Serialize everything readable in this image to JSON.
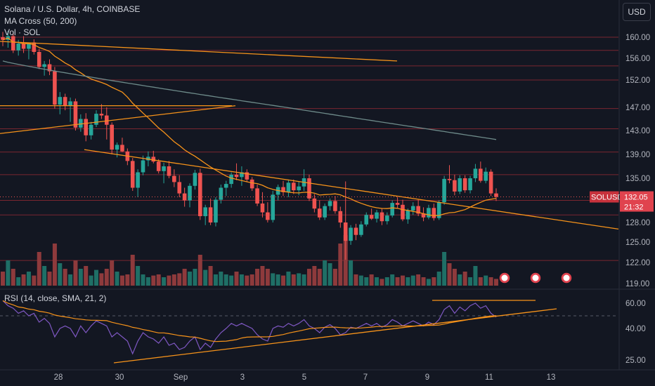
{
  "header": {
    "title": "Solana / U.S. Dollar, 4h, COINBASE",
    "indicator_ma": "MA Cross (50, 200)",
    "indicator_vol": "Vol · SOL",
    "currency_button": "USD"
  },
  "price_scale": {
    "ticks": [
      "160.00",
      "156.00",
      "152.00",
      "147.00",
      "143.00",
      "139.00",
      "135.00",
      "128.00",
      "125.00",
      "122.00",
      "119.00"
    ],
    "current_symbol": "SOLUSD",
    "current_price": "132.05",
    "countdown": "21:32"
  },
  "rsi": {
    "label": "RSI (14, close, SMA, 21, 2)",
    "ticks": [
      "60.00",
      "40.00",
      "25.00"
    ]
  },
  "time_axis": {
    "labels": [
      "28",
      "30",
      "Sep",
      "3",
      "5",
      "7",
      "9",
      "11",
      "13"
    ]
  },
  "colors": {
    "background": "#131722",
    "up": "#26a69a",
    "down": "#ef5350",
    "trendline": "#f7931a",
    "ma_long": "#6e8b8a",
    "rsi_line": "#7e57c2",
    "rsi_ma": "#f7931a"
  },
  "chart_data": {
    "type": "candlestick",
    "symbol": "SOLUSD",
    "interval": "4h",
    "candles": [
      [
        160.0,
        161.0,
        158.3,
        159.5
      ],
      [
        159.5,
        161.2,
        158.0,
        160.2
      ],
      [
        160.2,
        160.8,
        157.0,
        157.5
      ],
      [
        157.5,
        159.5,
        156.5,
        158.8
      ],
      [
        158.8,
        160.2,
        157.0,
        157.8
      ],
      [
        157.8,
        159.0,
        155.8,
        159.0
      ],
      [
        159.0,
        159.6,
        156.7,
        157.2
      ],
      [
        157.2,
        157.8,
        154.0,
        154.4
      ],
      [
        154.4,
        155.5,
        152.8,
        154.9
      ],
      [
        154.9,
        155.8,
        152.9,
        153.6
      ],
      [
        153.6,
        154.4,
        146.8,
        147.5
      ],
      [
        147.5,
        149.8,
        145.8,
        148.9
      ],
      [
        148.9,
        149.5,
        146.5,
        147.3
      ],
      [
        147.3,
        148.8,
        144.5,
        148.1
      ],
      [
        148.1,
        148.6,
        143.0,
        143.5
      ],
      [
        143.5,
        145.8,
        142.8,
        145.0
      ],
      [
        145.0,
        146.0,
        141.2,
        142.2
      ],
      [
        142.2,
        144.5,
        141.5,
        144.0
      ],
      [
        144.0,
        146.5,
        143.6,
        145.9
      ],
      [
        145.9,
        147.6,
        145.0,
        145.6
      ],
      [
        145.6,
        147.0,
        141.5,
        144.0
      ],
      [
        144.0,
        144.4,
        139.0,
        139.8
      ],
      [
        139.8,
        141.0,
        138.5,
        140.6
      ],
      [
        140.6,
        141.8,
        139.4,
        139.5
      ],
      [
        139.5,
        140.0,
        137.2,
        137.9
      ],
      [
        137.9,
        138.4,
        133.0,
        133.5
      ],
      [
        133.5,
        136.5,
        132.0,
        136.0
      ],
      [
        136.0,
        138.8,
        135.5,
        138.0
      ],
      [
        138.0,
        139.5,
        137.0,
        138.6
      ],
      [
        138.6,
        139.6,
        137.5,
        137.8
      ],
      [
        137.8,
        138.2,
        135.8,
        136.2
      ],
      [
        136.2,
        137.6,
        134.2,
        137.0
      ],
      [
        137.0,
        137.9,
        135.0,
        135.4
      ],
      [
        135.4,
        136.5,
        133.6,
        134.4
      ],
      [
        134.4,
        135.5,
        132.0,
        132.6
      ],
      [
        132.6,
        133.5,
        130.5,
        131.5
      ],
      [
        131.5,
        134.2,
        130.4,
        133.8
      ],
      [
        133.8,
        136.4,
        133.2,
        135.9
      ],
      [
        135.9,
        136.6,
        128.4,
        129.0
      ],
      [
        129.0,
        130.8,
        127.6,
        130.4
      ],
      [
        130.4,
        131.8,
        127.6,
        128.0
      ],
      [
        128.0,
        132.0,
        127.4,
        131.6
      ],
      [
        131.6,
        134.0,
        131.0,
        133.5
      ],
      [
        133.5,
        134.6,
        132.2,
        134.1
      ],
      [
        134.1,
        136.0,
        133.5,
        135.6
      ],
      [
        135.6,
        137.5,
        134.7,
        135.2
      ],
      [
        135.2,
        137.0,
        133.8,
        136.0
      ],
      [
        136.0,
        136.5,
        134.5,
        134.8
      ],
      [
        134.8,
        135.2,
        133.0,
        133.4
      ],
      [
        133.4,
        134.0,
        130.6,
        131.0
      ],
      [
        131.0,
        132.8,
        128.8,
        129.6
      ],
      [
        129.6,
        131.2,
        128.0,
        128.4
      ],
      [
        128.4,
        133.0,
        128.0,
        132.4
      ],
      [
        132.4,
        134.0,
        131.5,
        133.6
      ],
      [
        133.6,
        134.6,
        132.2,
        132.8
      ],
      [
        132.8,
        134.8,
        132.0,
        134.3
      ],
      [
        134.3,
        134.8,
        132.5,
        133.1
      ],
      [
        133.1,
        134.5,
        132.3,
        133.7
      ],
      [
        133.7,
        136.5,
        133.0,
        135.0
      ],
      [
        135.0,
        135.6,
        131.4,
        131.8
      ],
      [
        131.8,
        132.5,
        129.6,
        130.2
      ],
      [
        130.2,
        131.5,
        128.4,
        128.8
      ],
      [
        128.8,
        131.0,
        128.4,
        130.6
      ],
      [
        130.6,
        131.8,
        129.9,
        131.4
      ],
      [
        131.4,
        132.2,
        129.4,
        129.8
      ],
      [
        129.8,
        130.5,
        127.2,
        128.0
      ],
      [
        128.0,
        134.5,
        122.4,
        125.2
      ],
      [
        125.2,
        127.6,
        124.6,
        127.2
      ],
      [
        127.2,
        127.8,
        125.3,
        126.1
      ],
      [
        126.1,
        128.2,
        125.8,
        127.7
      ],
      [
        127.7,
        129.6,
        127.4,
        129.2
      ],
      [
        129.2,
        130.2,
        128.4,
        128.6
      ],
      [
        128.6,
        130.0,
        128.0,
        129.6
      ],
      [
        129.6,
        130.2,
        127.6,
        128.2
      ],
      [
        128.2,
        129.6,
        127.7,
        129.1
      ],
      [
        129.1,
        131.5,
        128.8,
        131.1
      ],
      [
        131.1,
        132.0,
        130.2,
        130.8
      ],
      [
        130.8,
        131.6,
        128.2,
        128.5
      ],
      [
        128.5,
        130.2,
        127.8,
        129.9
      ],
      [
        129.9,
        131.2,
        129.2,
        130.6
      ],
      [
        130.6,
        131.6,
        129.0,
        129.4
      ],
      [
        129.4,
        130.4,
        128.2,
        128.8
      ],
      [
        128.8,
        130.8,
        128.5,
        130.3
      ],
      [
        130.3,
        131.0,
        128.3,
        128.7
      ],
      [
        128.7,
        131.5,
        128.4,
        131.2
      ],
      [
        131.2,
        135.4,
        130.8,
        134.9
      ],
      [
        134.9,
        137.2,
        134.2,
        134.7
      ],
      [
        134.7,
        135.6,
        132.3,
        132.9
      ],
      [
        132.9,
        135.5,
        132.5,
        135.0
      ],
      [
        135.0,
        135.5,
        132.7,
        133.1
      ],
      [
        133.1,
        135.4,
        132.6,
        135.0
      ],
      [
        135.0,
        137.4,
        134.4,
        136.6
      ],
      [
        136.6,
        137.8,
        134.3,
        134.6
      ],
      [
        134.6,
        136.8,
        134.2,
        136.1
      ],
      [
        136.1,
        136.5,
        132.2,
        132.6
      ],
      [
        132.6,
        133.4,
        131.4,
        132.05
      ]
    ],
    "volume_relative": [
      0.25,
      0.45,
      0.3,
      0.15,
      0.2,
      0.25,
      0.18,
      0.6,
      0.35,
      0.25,
      0.75,
      0.4,
      0.3,
      0.2,
      0.45,
      0.3,
      0.35,
      0.18,
      0.28,
      0.22,
      0.3,
      0.45,
      0.25,
      0.18,
      0.2,
      0.55,
      0.35,
      0.2,
      0.15,
      0.18,
      0.2,
      0.15,
      0.18,
      0.2,
      0.22,
      0.3,
      0.25,
      0.3,
      0.55,
      0.28,
      0.35,
      0.2,
      0.25,
      0.2,
      0.18,
      0.25,
      0.2,
      0.18,
      0.2,
      0.3,
      0.35,
      0.3,
      0.22,
      0.2,
      0.18,
      0.25,
      0.2,
      0.22,
      0.2,
      0.3,
      0.35,
      0.3,
      0.45,
      0.4,
      0.3,
      0.75,
      0.9,
      0.45,
      0.2,
      0.18,
      0.15,
      0.2,
      0.15,
      0.12,
      0.15,
      0.2,
      0.15,
      0.18,
      0.15,
      0.18,
      0.2,
      0.15,
      0.12,
      0.15,
      0.25,
      0.6,
      0.4,
      0.3,
      0.2,
      0.25,
      0.15,
      0.35,
      0.15,
      0.18,
      0.15,
      0.12
    ],
    "rsi_values": [
      62,
      58,
      56,
      52,
      54,
      50,
      52,
      45,
      48,
      44,
      36,
      40,
      42,
      40,
      36,
      42,
      38,
      42,
      46,
      44,
      42,
      36,
      38,
      36,
      34,
      28,
      34,
      38,
      36,
      35,
      33,
      36,
      32,
      33,
      30,
      31,
      34,
      36,
      30,
      33,
      31,
      35,
      38,
      40,
      44,
      42,
      44,
      42,
      40,
      37,
      35,
      34,
      40,
      42,
      41,
      44,
      42,
      44,
      47,
      42,
      40,
      38,
      41,
      43,
      40,
      37,
      38,
      41,
      40,
      42,
      44,
      42,
      44,
      41,
      43,
      47,
      45,
      42,
      44,
      46,
      44,
      42,
      45,
      43,
      47,
      55,
      58,
      52,
      57,
      54,
      58,
      60,
      56,
      58,
      52,
      49
    ],
    "price_ylim": [
      118,
      162
    ],
    "rsi_ylim": [
      22,
      64
    ]
  }
}
